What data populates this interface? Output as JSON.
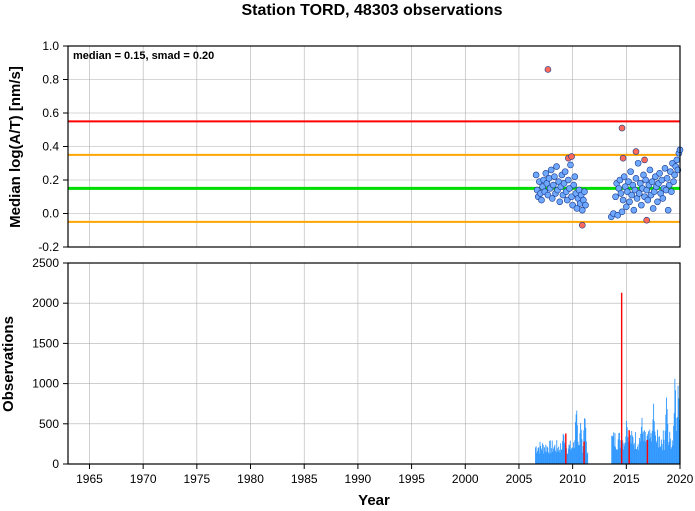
{
  "chart_data": [
    {
      "type": "scatter",
      "title": "Station TORD, 48303 observations",
      "ylabel": "Median log(A/T) [nm/s]",
      "xlabel": "",
      "annotation": "median = 0.15, smad = 0.20",
      "xlim": [
        1963,
        2020
      ],
      "ylim": [
        -0.2,
        1.0
      ],
      "y_ticks": [
        -0.2,
        0.0,
        0.2,
        0.4,
        0.6,
        0.8,
        1.0
      ],
      "y_tick_labels": [
        "-0.2",
        "0.0",
        "0.2",
        "0.4",
        "0.6",
        "0.8",
        "1.0"
      ],
      "grid": true,
      "reference_lines": [
        {
          "y": 0.55,
          "color": "#ff0000"
        },
        {
          "y": 0.35,
          "color": "#ffa500"
        },
        {
          "y": 0.15,
          "color": "#00dd00"
        },
        {
          "y": -0.05,
          "color": "#ffa500"
        }
      ],
      "series": [
        {
          "color": "#6fa8ff",
          "points": [
            [
              2006.6,
              0.23
            ],
            [
              2006.7,
              0.14
            ],
            [
              2006.8,
              0.1
            ],
            [
              2006.9,
              0.19
            ],
            [
              2007.0,
              0.12
            ],
            [
              2007.1,
              0.08
            ],
            [
              2007.2,
              0.16
            ],
            [
              2007.3,
              0.2
            ],
            [
              2007.4,
              0.13
            ],
            [
              2007.5,
              0.24
            ],
            [
              2007.6,
              0.18
            ],
            [
              2007.7,
              0.11
            ],
            [
              2007.8,
              0.21
            ],
            [
              2007.9,
              0.15
            ],
            [
              2008.0,
              0.26
            ],
            [
              2008.1,
              0.09
            ],
            [
              2008.2,
              0.17
            ],
            [
              2008.3,
              0.22
            ],
            [
              2008.4,
              0.12
            ],
            [
              2008.5,
              0.28
            ],
            [
              2008.6,
              0.14
            ],
            [
              2008.7,
              0.19
            ],
            [
              2008.8,
              0.07
            ],
            [
              2008.9,
              0.16
            ],
            [
              2009.0,
              0.23
            ],
            [
              2009.1,
              0.11
            ],
            [
              2009.2,
              0.18
            ],
            [
              2009.3,
              0.25
            ],
            [
              2009.4,
              0.13
            ],
            [
              2009.5,
              0.08
            ],
            [
              2009.6,
              0.2
            ],
            [
              2009.7,
              0.15
            ],
            [
              2009.8,
              0.29
            ],
            [
              2009.9,
              0.1
            ],
            [
              2010.0,
              0.05
            ],
            [
              2010.1,
              0.17
            ],
            [
              2010.2,
              0.22
            ],
            [
              2010.3,
              0.12
            ],
            [
              2010.4,
              0.03
            ],
            [
              2010.5,
              0.09
            ],
            [
              2010.6,
              0.14
            ],
            [
              2010.7,
              0.06
            ],
            [
              2010.8,
              0.11
            ],
            [
              2010.9,
              0.02
            ],
            [
              2011.0,
              0.08
            ],
            [
              2011.1,
              0.13
            ],
            [
              2011.2,
              0.05
            ],
            [
              2013.6,
              -0.02
            ],
            [
              2013.8,
              0.0
            ],
            [
              2014.0,
              0.1
            ],
            [
              2014.1,
              0.18
            ],
            [
              2014.2,
              -0.01
            ],
            [
              2014.3,
              0.15
            ],
            [
              2014.4,
              0.2
            ],
            [
              2014.5,
              0.12
            ],
            [
              2014.6,
              0.01
            ],
            [
              2014.7,
              0.08
            ],
            [
              2014.8,
              0.22
            ],
            [
              2014.9,
              0.16
            ],
            [
              2015.0,
              0.04
            ],
            [
              2015.1,
              0.13
            ],
            [
              2015.2,
              0.19
            ],
            [
              2015.3,
              0.07
            ],
            [
              2015.4,
              0.25
            ],
            [
              2015.5,
              0.11
            ],
            [
              2015.6,
              0.17
            ],
            [
              2015.7,
              0.02
            ],
            [
              2015.8,
              0.14
            ],
            [
              2015.9,
              0.21
            ],
            [
              2016.0,
              0.09
            ],
            [
              2016.1,
              0.3
            ],
            [
              2016.2,
              0.12
            ],
            [
              2016.3,
              0.18
            ],
            [
              2016.4,
              0.05
            ],
            [
              2016.5,
              0.15
            ],
            [
              2016.6,
              0.23
            ],
            [
              2016.7,
              0.1
            ],
            [
              2016.8,
              0.2
            ],
            [
              2016.9,
              0.14
            ],
            [
              2017.0,
              0.08
            ],
            [
              2017.1,
              0.17
            ],
            [
              2017.2,
              0.26
            ],
            [
              2017.3,
              0.11
            ],
            [
              2017.4,
              0.19
            ],
            [
              2017.5,
              0.03
            ],
            [
              2017.6,
              0.13
            ],
            [
              2017.7,
              0.22
            ],
            [
              2017.8,
              0.16
            ],
            [
              2017.9,
              0.07
            ],
            [
              2018.0,
              0.18
            ],
            [
              2018.1,
              0.24
            ],
            [
              2018.2,
              0.12
            ],
            [
              2018.3,
              0.2
            ],
            [
              2018.4,
              0.09
            ],
            [
              2018.5,
              0.15
            ],
            [
              2018.6,
              0.27
            ],
            [
              2018.7,
              0.14
            ],
            [
              2018.8,
              0.21
            ],
            [
              2018.9,
              0.02
            ],
            [
              2019.0,
              0.17
            ],
            [
              2019.1,
              0.25
            ],
            [
              2019.2,
              0.13
            ],
            [
              2019.3,
              0.3
            ],
            [
              2019.4,
              0.19
            ],
            [
              2019.5,
              0.23
            ],
            [
              2019.6,
              0.28
            ],
            [
              2019.7,
              0.32
            ],
            [
              2019.8,
              0.26
            ],
            [
              2019.9,
              0.36
            ],
            [
              2020.0,
              0.38
            ]
          ]
        },
        {
          "color": "#ff6a5a",
          "points": [
            [
              2007.7,
              0.86
            ],
            [
              2009.6,
              0.33
            ],
            [
              2009.9,
              0.34
            ],
            [
              2010.9,
              -0.07
            ],
            [
              2014.6,
              0.51
            ],
            [
              2014.7,
              0.33
            ],
            [
              2015.9,
              0.37
            ],
            [
              2016.7,
              0.32
            ],
            [
              2016.9,
              -0.04
            ]
          ]
        }
      ]
    },
    {
      "type": "bar",
      "title": "",
      "ylabel": "Observations",
      "xlabel": "Year",
      "xlim": [
        1963,
        2020
      ],
      "ylim": [
        0,
        2500
      ],
      "x_ticks": [
        1965,
        1970,
        1975,
        1980,
        1985,
        1990,
        1995,
        2000,
        2005,
        2010,
        2015,
        2020
      ],
      "x_tick_labels": [
        "1965",
        "1970",
        "1975",
        "1980",
        "1985",
        "1990",
        "1995",
        "2000",
        "2005",
        "2010",
        "2015",
        "2020"
      ],
      "y_ticks": [
        0,
        500,
        1000,
        1500,
        2000,
        2500
      ],
      "y_tick_labels": [
        "0",
        "500",
        "1000",
        "1500",
        "2000",
        "2500"
      ],
      "grid": true,
      "bar_color": "#3399ff",
      "highlight_color": "#ff0000",
      "segments": [
        {
          "start": 2006.5,
          "end": 2011.4,
          "base": 230,
          "peaks": [
            [
              2009.1,
              470
            ],
            [
              2010.3,
              820
            ],
            [
              2010.7,
              600
            ],
            [
              2011.1,
              700
            ]
          ]
        },
        {
          "start": 2013.6,
          "end": 2020.0,
          "base": 330,
          "peaks": [
            [
              2015.0,
              640
            ],
            [
              2016.4,
              640
            ],
            [
              2017.5,
              800
            ],
            [
              2018.7,
              1000
            ],
            [
              2019.5,
              1230
            ],
            [
              2019.8,
              1100
            ]
          ]
        }
      ],
      "highlights": [
        {
          "x": 2009.3,
          "value": 380
        },
        {
          "x": 2011.0,
          "value": 280
        },
        {
          "x": 2014.5,
          "value": 2130
        },
        {
          "x": 2015.2,
          "value": 420
        },
        {
          "x": 2016.9,
          "value": 300
        }
      ]
    }
  ]
}
